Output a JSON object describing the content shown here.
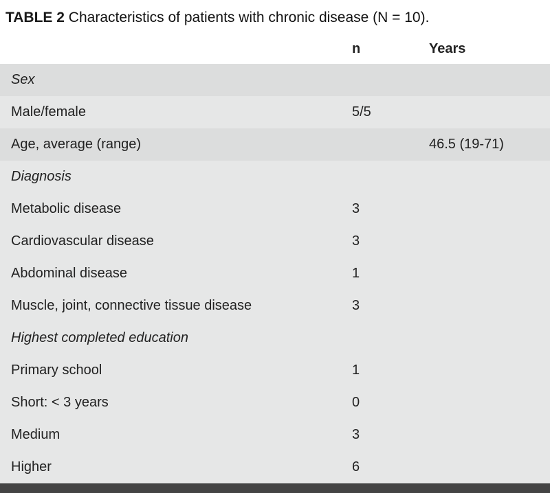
{
  "caption": {
    "label": "TABLE 2",
    "text": "Characteristics of patients with chronic disease (N = 10)."
  },
  "table": {
    "type": "table",
    "background_colors": {
      "shade_a": "#dcdddd",
      "shade_b": "#e6e7e7",
      "header_bg": "#ffffff",
      "footer_bar": "#444444"
    },
    "text_color": "#222222",
    "caption_fontsize": 21,
    "body_fontsize": 20,
    "columns": [
      {
        "key": "label",
        "header": "",
        "width_pct": 62,
        "align": "left"
      },
      {
        "key": "n",
        "header": "n",
        "width_pct": 14,
        "align": "left"
      },
      {
        "key": "years",
        "header": "Years",
        "width_pct": 24,
        "align": "left"
      }
    ],
    "rows": [
      {
        "kind": "section",
        "shade": "a",
        "label": "Sex"
      },
      {
        "kind": "data",
        "shade": "b",
        "label": "Male/female",
        "n": "5/5",
        "years": ""
      },
      {
        "kind": "data",
        "shade": "a",
        "label": "Age, average (range)",
        "n": "",
        "years": "46.5 (19-71)"
      },
      {
        "kind": "section",
        "shade": "b",
        "label": "Diagnosis"
      },
      {
        "kind": "data",
        "shade": "b",
        "label": "Metabolic disease",
        "n": "3",
        "years": ""
      },
      {
        "kind": "data",
        "shade": "b",
        "label": "Cardiovascular disease",
        "n": "3",
        "years": ""
      },
      {
        "kind": "data",
        "shade": "b",
        "label": "Abdominal disease",
        "n": "1",
        "years": ""
      },
      {
        "kind": "data",
        "shade": "b",
        "label": "Muscle, joint, connective tissue disease",
        "n": "3",
        "years": ""
      },
      {
        "kind": "section",
        "shade": "b",
        "label": "Highest completed education"
      },
      {
        "kind": "data",
        "shade": "b",
        "label": "Primary school",
        "n": "1",
        "years": ""
      },
      {
        "kind": "data",
        "shade": "b",
        "label": "Short: < 3 years",
        "n": "0",
        "years": ""
      },
      {
        "kind": "data",
        "shade": "b",
        "label": "Medium",
        "n": "3",
        "years": ""
      },
      {
        "kind": "data",
        "shade": "b",
        "label": "Higher",
        "n": "6",
        "years": ""
      }
    ]
  }
}
